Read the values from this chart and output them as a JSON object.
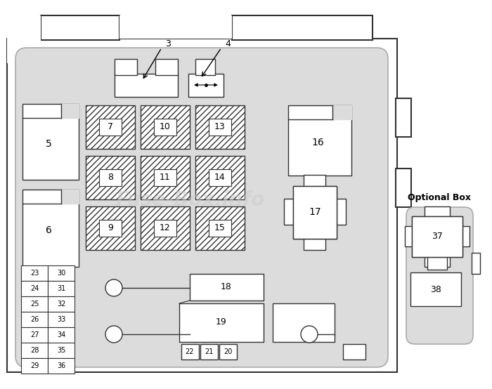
{
  "bg_outer": "#ffffff",
  "bg_panel": "#dcdcdc",
  "comp_fill": "#ffffff",
  "comp_edge": "#333333",
  "watermark_color": "#cccccc",
  "opt_label": "Optional Box",
  "fuses_col1": [
    "23",
    "24",
    "25",
    "26",
    "27",
    "28",
    "29"
  ],
  "fuses_col2": [
    "30",
    "31",
    "32",
    "33",
    "34",
    "35",
    "36"
  ],
  "relay_grid": [
    {
      "label": "7",
      "col": 0,
      "row": 0
    },
    {
      "label": "10",
      "col": 1,
      "row": 0
    },
    {
      "label": "13",
      "col": 2,
      "row": 0
    },
    {
      "label": "8",
      "col": 0,
      "row": 1
    },
    {
      "label": "11",
      "col": 1,
      "row": 1
    },
    {
      "label": "14",
      "col": 2,
      "row": 1
    },
    {
      "label": "9",
      "col": 0,
      "row": 2
    },
    {
      "label": "12",
      "col": 1,
      "row": 2
    },
    {
      "label": "15",
      "col": 2,
      "row": 2
    }
  ]
}
